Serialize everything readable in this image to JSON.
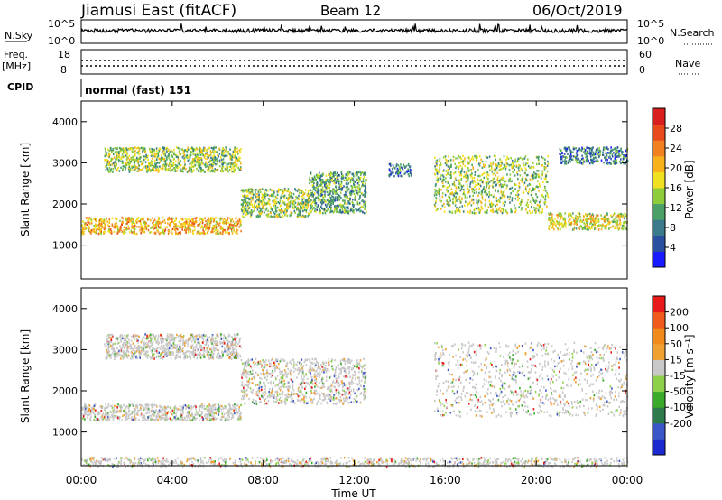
{
  "header": {
    "station": "Jiamusi East (fitACF)",
    "beam": "Beam 12",
    "date": "06/Oct/2019"
  },
  "status_panels": {
    "nsky_label": "N.Sky",
    "nsky_tick_top": "10^5",
    "nsky_tick_bottom": "10^0",
    "nsearch_label": "N.Search",
    "nsearch_tick_top": "10^5",
    "nsearch_tick_bottom": "10^0",
    "freq_label_1": "Freq.",
    "freq_label_2": "[MHz]",
    "freq_tick_top": "18",
    "freq_tick_bottom": "8",
    "nave_label": "Nave",
    "nave_tick_top": "60",
    "nave_tick_bottom": "0",
    "cpid_label": "CPID",
    "cpid_text": "normal (fast) 151",
    "freq_level_mhz": 12,
    "nave_level": 20
  },
  "chart_data": [
    {
      "type": "heatmap",
      "panel": "power",
      "ylabel": "Slant Range [km]",
      "ylim": [
        180,
        4500
      ],
      "yticks": [
        "1000",
        "2000",
        "3000",
        "4000"
      ],
      "colorbar": {
        "label": "Power [dB]",
        "ticks": [
          "4",
          "8",
          "12",
          "16",
          "20",
          "24",
          "28"
        ],
        "colors": [
          "#1a1aff",
          "#2b4fa0",
          "#3a7a8a",
          "#4aa066",
          "#8fcc3a",
          "#f0e020",
          "#f7b21b",
          "#f08020",
          "#e84a1c",
          "#d81e1e"
        ]
      },
      "echo_regions": [
        {
          "start": "00:00",
          "end": "07:00",
          "range_low_km": 1300,
          "range_high_km": 1700,
          "dominant_power_db": 20
        },
        {
          "start": "01:00",
          "end": "07:00",
          "range_low_km": 2800,
          "range_high_km": 3400,
          "dominant_power_db": 12
        },
        {
          "start": "07:00",
          "end": "10:00",
          "range_low_km": 1700,
          "range_high_km": 2400,
          "dominant_power_db": 14
        },
        {
          "start": "10:00",
          "end": "12:30",
          "range_low_km": 1800,
          "range_high_km": 2800,
          "dominant_power_db": 10
        },
        {
          "start": "13:30",
          "end": "14:30",
          "range_low_km": 2700,
          "range_high_km": 3000,
          "dominant_power_db": 8
        },
        {
          "start": "15:30",
          "end": "20:30",
          "range_low_km": 1800,
          "range_high_km": 3200,
          "dominant_power_db": 14
        },
        {
          "start": "20:30",
          "end": "24:00",
          "range_low_km": 1400,
          "range_high_km": 1800,
          "dominant_power_db": 16
        },
        {
          "start": "21:00",
          "end": "24:00",
          "range_low_km": 3000,
          "range_high_km": 3400,
          "dominant_power_db": 8
        }
      ]
    },
    {
      "type": "heatmap",
      "panel": "velocity",
      "xlabel": "Time UT",
      "ylabel": "Slant Range [km]",
      "ylim": [
        180,
        4500
      ],
      "yticks": [
        "1000",
        "2000",
        "3000",
        "4000"
      ],
      "xticks": [
        "00:00",
        "04:00",
        "08:00",
        "12:00",
        "16:00",
        "20:00",
        "00:00"
      ],
      "colorbar": {
        "label": "Velocity [m s⁻¹]",
        "ticks": [
          "200",
          "100",
          "50",
          "15",
          "-15",
          "-50",
          "-100",
          "-200"
        ],
        "colors": [
          "#1a2ad0",
          "#3a55c8",
          "#2d7a4a",
          "#3aaa2a",
          "#8fd04a",
          "#c8c8c8",
          "#f0a030",
          "#f08a1a",
          "#f05a1a",
          "#e81a1a"
        ]
      },
      "echo_regions": [
        {
          "start": "00:00",
          "end": "07:00",
          "range_low_km": 1300,
          "range_high_km": 1700,
          "dominant_velocity": "-15 to 15"
        },
        {
          "start": "01:00",
          "end": "07:00",
          "range_low_km": 2800,
          "range_high_km": 3400,
          "dominant_velocity": "-15 to 15"
        },
        {
          "start": "07:00",
          "end": "12:30",
          "range_low_km": 1700,
          "range_high_km": 2800,
          "dominant_velocity": "-15 to 15"
        },
        {
          "start": "15:30",
          "end": "24:00",
          "range_low_km": 1400,
          "range_high_km": 3200,
          "dominant_velocity": "-15 to 15"
        },
        {
          "start": "00:00",
          "end": "24:00",
          "range_low_km": 180,
          "range_high_km": 400,
          "dominant_velocity": "-50 to 15"
        }
      ]
    }
  ]
}
